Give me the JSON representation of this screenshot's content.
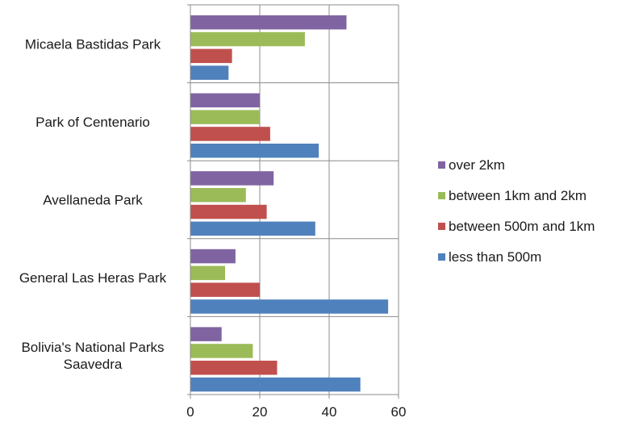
{
  "chart_data": {
    "type": "bar",
    "orientation": "horizontal",
    "categories": [
      "Micaela Bastidas Park",
      "Park of Centenario",
      "Avellaneda Park",
      "General Las Heras Park",
      "Bolivia's National Parks Saavedra"
    ],
    "series": [
      {
        "name": "over 2km",
        "color": "#8064A2",
        "values": [
          45,
          20,
          24,
          13,
          9
        ]
      },
      {
        "name": "between 1km and 2km",
        "color": "#9BBB59",
        "values": [
          33,
          20,
          16,
          10,
          18
        ]
      },
      {
        "name": "between 500m and 1km",
        "color": "#C0504D",
        "values": [
          12,
          23,
          22,
          20,
          25
        ]
      },
      {
        "name": "less than 500m",
        "color": "#4F81BD",
        "values": [
          11,
          37,
          36,
          57,
          49
        ]
      }
    ],
    "xlim": [
      0,
      60
    ],
    "xticks": [
      0,
      20,
      40,
      60
    ],
    "grid": "vertical",
    "legend_position": "right",
    "title": "",
    "xlabel": "",
    "ylabel": ""
  }
}
